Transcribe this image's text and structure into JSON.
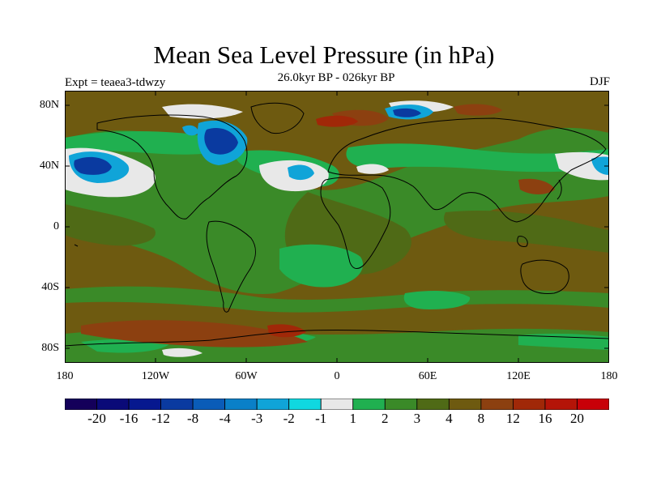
{
  "title": "Mean Sea Level Pressure (in hPa)",
  "subtitle": "26.0kyr BP - 026kyr BP",
  "experiment_label": "Expt = teaea3-tdwzy",
  "season": "DJF",
  "lat_labels": [
    "80N",
    "40N",
    "0",
    "40S",
    "80S"
  ],
  "lon_labels": [
    "180",
    "120W",
    "60W",
    "0",
    "60E",
    "120E",
    "180"
  ],
  "colorbar": {
    "labels": [
      "-20",
      "-16",
      "-12",
      "-8",
      "-4",
      "-3",
      "-2",
      "-1",
      "1",
      "2",
      "3",
      "4",
      "8",
      "12",
      "16",
      "20"
    ],
    "colors": [
      "#14005a",
      "#0a0a78",
      "#06188f",
      "#0a3aa0",
      "#0a5cb8",
      "#0a80c8",
      "#10a4d8",
      "#10d8e0",
      "#e8e8e8",
      "#20b050",
      "#3a8a28",
      "#4f6a16",
      "#6e5a10",
      "#8c4010",
      "#a02808",
      "#b41408",
      "#c80008"
    ]
  },
  "colors": {
    "background_field": "#6e5a10",
    "positive_light": "#20b050",
    "positive_mid": "#3a8a28",
    "positive_dark": "#4f6a16",
    "near_zero": "#e8e8e8",
    "negative_cyan": "#10a4d8",
    "negative_blue": "#0a3aa0",
    "high_brown": "#8c4010",
    "high_red": "#a02808"
  }
}
